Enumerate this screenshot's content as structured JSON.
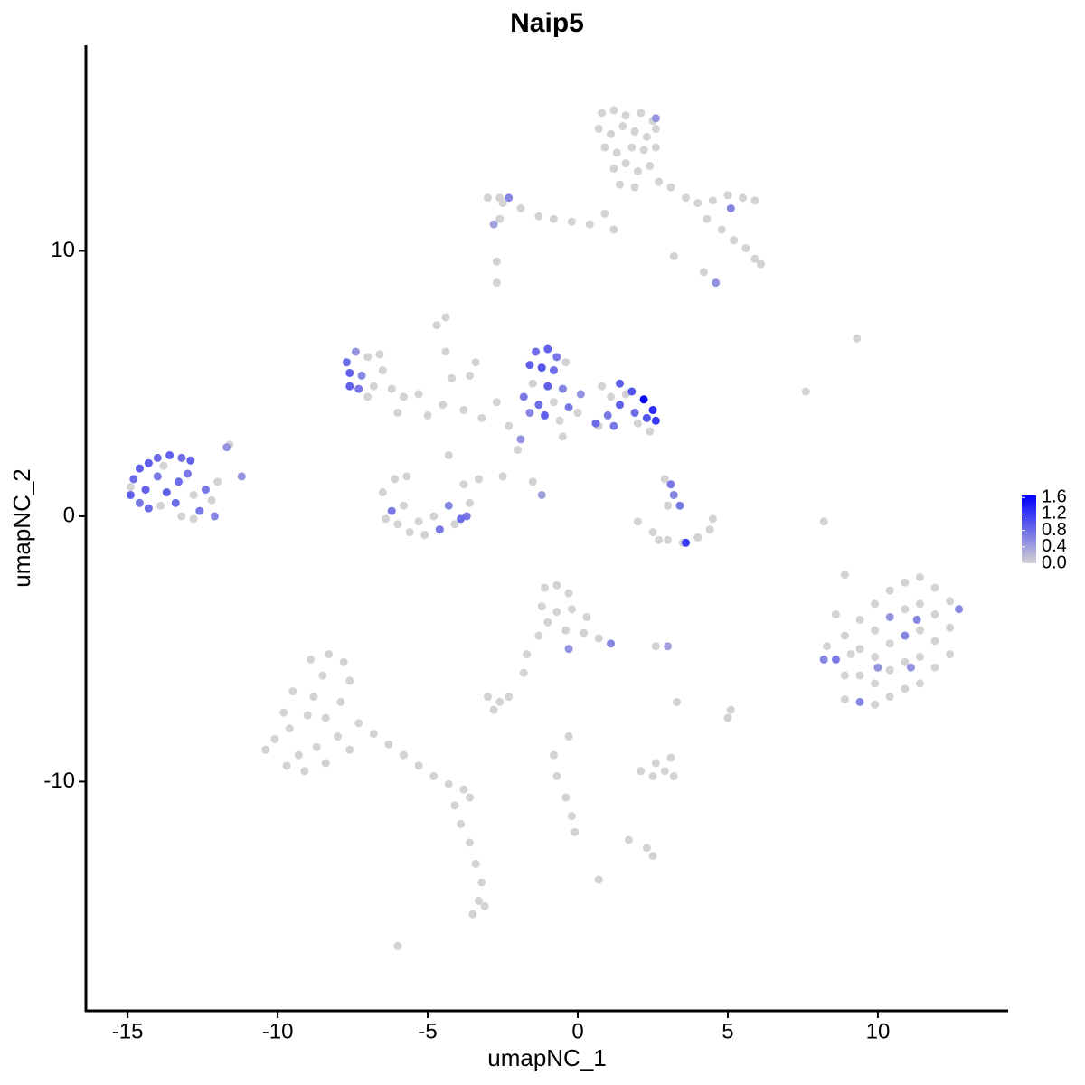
{
  "chart_data": {
    "type": "scatter",
    "title": "Naip5",
    "x_label": "umapNC_1",
    "y_label": "umapNC_2",
    "xlim": [
      -16.39,
      14.34
    ],
    "ylim": [
      -18.64,
      17.75
    ],
    "xticks": [
      -15,
      -10,
      -5,
      0,
      5,
      10
    ],
    "yticks": [
      -10,
      0,
      10
    ],
    "color_low": "#d3d3d3",
    "color_high": "#0000ff",
    "color_range": [
      0,
      1.65
    ],
    "color_ticks": [
      {
        "value": 0,
        "label": "0.0"
      },
      0.4,
      0.8,
      1.2,
      1.6
    ],
    "x": [
      0.8,
      1.2,
      1.6,
      2.1,
      2.5,
      0.7,
      1.1,
      1.5,
      1.9,
      2.3,
      2.6,
      0.9,
      1.3,
      1.8,
      2.2,
      2.6,
      1.2,
      1.6,
      2.0,
      2.4,
      1.4,
      1.9,
      2.7,
      3.1,
      3.6,
      4.0,
      4.5,
      5.0,
      5.5,
      5.9,
      4.3,
      4.8,
      5.2,
      5.6,
      5.9,
      6.1,
      4.2,
      4.6,
      5.1,
      2.6,
      0.9,
      0.4,
      -0.2,
      -0.8,
      -1.3,
      -1.9,
      -2.5,
      -3.0,
      -2.6,
      -2.3,
      -2.8,
      1.2,
      3.2,
      -2.7,
      -4.4,
      -4.7,
      -4.4,
      -4.2,
      -3.4,
      -3.6,
      -2.7,
      -3.8,
      -4.5,
      -5.3,
      -5.0,
      -3.2,
      -2.3,
      -2.0,
      -2.5,
      -4.3,
      -3.3,
      -1.5,
      -1.2,
      -1.9,
      -0.5,
      0.7,
      -7.7,
      -7.6,
      -7.4,
      -7.6,
      -7.0,
      -6.5,
      -7.2,
      -6.8,
      -6.2,
      -5.8,
      -7.0,
      -6.6,
      -7.3,
      -6.0,
      -1.4,
      -1.0,
      -0.7,
      -1.6,
      -1.2,
      -0.8,
      -0.4,
      -1.5,
      -1.0,
      -0.5,
      -1.8,
      -1.3,
      -0.8,
      -0.3,
      -1.1,
      -0.6,
      -1.6,
      0.0,
      0.1,
      0.6,
      1.0,
      1.4,
      1.4,
      1.8,
      2.2,
      2.5,
      2.6,
      2.3,
      1.9,
      1.6,
      1.1,
      0.8,
      2.0,
      1.2,
      2.4,
      -14.8,
      -14.6,
      -14.3,
      -14.0,
      -13.6,
      -13.2,
      -12.9,
      -14.9,
      -14.6,
      -14.3,
      -14.4,
      -14.0,
      -13.7,
      -13.3,
      -13.0,
      -13.9,
      -13.4,
      -12.8,
      -12.4,
      -12.2,
      -12.6,
      -12.1,
      -12.8,
      -13.2,
      -11.7,
      -11.6,
      -12.0,
      -11.2,
      -14.9,
      -13.8,
      -6.5,
      -6.2,
      -6.0,
      -5.6,
      -5.1,
      -4.6,
      -4.1,
      -3.7,
      -3.6,
      -3.8,
      -4.3,
      -5.3,
      -5.8,
      -4.8,
      -6.1,
      -5.7,
      -3.9,
      -6.4,
      2.0,
      2.5,
      3.0,
      3.5,
      4.0,
      4.4,
      4.5,
      3.6,
      3.1,
      3.2,
      3.4,
      3.0,
      2.9,
      2.7,
      8.3,
      8.2,
      8.6,
      8.9,
      8.9,
      8.9,
      9.4,
      9.4,
      9.4,
      9.4,
      9.9,
      9.9,
      9.9,
      9.9,
      9.9,
      10.4,
      10.4,
      10.4,
      10.4,
      10.4,
      10.9,
      10.9,
      10.9,
      10.9,
      10.9,
      11.4,
      11.4,
      11.4,
      11.4,
      11.4,
      11.9,
      11.9,
      11.9,
      11.9,
      12.4,
      12.4,
      12.4,
      12.7,
      11.3,
      11.1,
      10.0,
      9.1,
      8.6,
      8.9,
      8.2,
      7.6,
      9.3,
      -1.1,
      -0.7,
      -0.3,
      -1.2,
      -0.7,
      -0.2,
      0.3,
      -1.0,
      -0.4,
      0.2,
      0.7,
      1.1,
      -1.3,
      -1.7,
      -1.8,
      -0.3,
      3.0,
      2.6,
      -10.4,
      -10.1,
      -9.6,
      -9.0,
      -8.8,
      -8.5,
      -8.9,
      -8.3,
      -7.8,
      -7.6,
      -7.9,
      -8.4,
      -8.0,
      -8.7,
      -9.3,
      -9.7,
      -9.1,
      -8.4,
      -7.6,
      -9.5,
      -9.8,
      -7.3,
      -6.8,
      -6.3,
      -5.8,
      -5.3,
      -4.8,
      -4.3,
      -3.8,
      -3.6,
      -4.1,
      -3.9,
      -3.6,
      -3.4,
      -3.2,
      -3.3,
      -3.5,
      -3.1,
      -6.0,
      -3.0,
      -2.6,
      -2.3,
      -2.8,
      2.1,
      2.5,
      2.9,
      3.2,
      2.6,
      3.1,
      2.3,
      2.5,
      1.7,
      -0.8,
      -0.7,
      -0.4,
      -0.2,
      -0.1,
      0.7,
      -0.3,
      3.3,
      5.1,
      5.0,
      -2.6,
      -2.7
    ],
    "values": [
      15.2,
      15.3,
      15.1,
      15.2,
      14.9,
      14.6,
      14.4,
      14.7,
      14.5,
      14.3,
      14.6,
      13.9,
      13.7,
      13.9,
      13.8,
      13.9,
      13.1,
      13.3,
      13.0,
      13.2,
      12.5,
      12.4,
      12.6,
      12.4,
      12.0,
      11.8,
      11.9,
      12.1,
      12.0,
      11.9,
      11.2,
      10.8,
      10.4,
      10.1,
      9.7,
      9.5,
      9.2,
      8.8,
      11.6,
      15.0,
      11.4,
      11.0,
      11.1,
      11.2,
      11.3,
      11.6,
      11.8,
      12.0,
      11.2,
      12.0,
      11.0,
      10.8,
      9.8,
      8.8,
      7.5,
      7.2,
      6.2,
      5.2,
      5.8,
      5.3,
      4.3,
      4.0,
      4.2,
      4.6,
      3.8,
      3.7,
      3.4,
      2.5,
      1.5,
      2.3,
      1.4,
      1.3,
      0.8,
      2.9,
      3.0,
      3.4,
      5.8,
      5.4,
      6.2,
      4.9,
      6.0,
      5.5,
      5.3,
      4.9,
      4.8,
      4.5,
      4.5,
      6.1,
      4.8,
      3.9,
      6.2,
      6.3,
      6.0,
      5.7,
      5.6,
      5.5,
      5.8,
      5.0,
      4.9,
      4.8,
      4.5,
      4.2,
      4.3,
      4.1,
      3.8,
      3.6,
      3.9,
      3.9,
      4.6,
      3.5,
      3.8,
      4.2,
      5.0,
      4.7,
      4.4,
      4.0,
      3.6,
      3.7,
      3.9,
      4.6,
      4.5,
      4.9,
      3.5,
      3.4,
      3.2,
      1.4,
      1.8,
      2.0,
      2.2,
      2.3,
      2.2,
      2.1,
      0.8,
      0.5,
      0.3,
      1.0,
      1.5,
      0.9,
      1.3,
      1.6,
      0.4,
      0.5,
      0.8,
      1.0,
      0.6,
      0.2,
      0.0,
      -0.1,
      0.0,
      2.6,
      2.7,
      1.3,
      1.5,
      1.1,
      1.9,
      0.9,
      0.2,
      -0.3,
      -0.6,
      -0.7,
      -0.5,
      -0.3,
      0.0,
      0.5,
      1.2,
      0.4,
      -0.2,
      0.4,
      0.0,
      1.4,
      1.5,
      -0.1,
      -0.1,
      -0.2,
      -0.6,
      -0.9,
      -1.0,
      -0.8,
      -0.5,
      -0.1,
      -1.0,
      1.2,
      0.8,
      0.4,
      0.4,
      1.4,
      -0.9,
      -4.9,
      -5.4,
      -5.4,
      -4.5,
      -6.0,
      -6.9,
      -3.9,
      -5.0,
      -6.0,
      -7.0,
      -3.3,
      -4.3,
      -5.3,
      -6.3,
      -7.1,
      -2.8,
      -3.8,
      -4.8,
      -5.8,
      -6.8,
      -2.5,
      -3.5,
      -4.5,
      -5.5,
      -6.5,
      -2.3,
      -3.3,
      -4.3,
      -5.3,
      -6.3,
      -2.7,
      -3.7,
      -4.7,
      -5.7,
      -3.2,
      -4.2,
      -5.2,
      -3.5,
      -3.9,
      -5.7,
      -5.7,
      -5.2,
      -3.7,
      -2.2,
      -0.2,
      4.7,
      6.7,
      -2.7,
      -2.6,
      -2.9,
      -3.4,
      -3.6,
      -3.5,
      -3.8,
      -4.0,
      -4.3,
      -4.4,
      -4.6,
      -4.8,
      -4.5,
      -5.2,
      -5.9,
      -5.0,
      -4.9,
      -4.9,
      -8.8,
      -8.4,
      -8.0,
      -7.5,
      -6.8,
      -6.0,
      -5.4,
      -5.2,
      -5.5,
      -6.2,
      -7.0,
      -7.6,
      -8.3,
      -8.7,
      -9.0,
      -9.4,
      -9.6,
      -9.3,
      -8.8,
      -6.6,
      -7.4,
      -7.8,
      -8.2,
      -8.6,
      -9.0,
      -9.4,
      -9.8,
      -10.1,
      -10.3,
      -10.6,
      -10.9,
      -11.6,
      -12.3,
      -13.1,
      -13.8,
      -14.5,
      -15.0,
      -14.7,
      -16.2,
      -6.8,
      -7.0,
      -6.8,
      -7.3,
      -9.6,
      -9.8,
      -9.6,
      -9.8,
      -9.3,
      -9.1,
      -12.5,
      -12.8,
      -12.2,
      -9.0,
      -9.8,
      -10.6,
      -11.3,
      -11.9,
      -13.7,
      -8.3,
      -7.0,
      -7.3,
      -7.6,
      12.0,
      9.6
    ],
    "expression": [
      0,
      0,
      0,
      0,
      0,
      0,
      0,
      0,
      0,
      0,
      0,
      0,
      0,
      0,
      0,
      0,
      0,
      0,
      0,
      0,
      0,
      0,
      0,
      0,
      0,
      0,
      0,
      0,
      0,
      0,
      0,
      0,
      0,
      0,
      0,
      0,
      0,
      0.5,
      0.6,
      0.5,
      0,
      0,
      0,
      0,
      0,
      0,
      0,
      0,
      0,
      0.6,
      0.4,
      0,
      0,
      0,
      0,
      0,
      0,
      0,
      0,
      0,
      0,
      0,
      0,
      0,
      0,
      0,
      0,
      0,
      0,
      0,
      0,
      0,
      0.4,
      0.5,
      0,
      0,
      0.8,
      0.9,
      0.5,
      0.9,
      0,
      0,
      0.6,
      0,
      0,
      0,
      0,
      0,
      0.7,
      0,
      0.8,
      0.9,
      0.7,
      0.9,
      1.0,
      0.8,
      0,
      0,
      0.9,
      0.6,
      0.7,
      0.8,
      0,
      0.7,
      0.9,
      0,
      0.6,
      0,
      0.5,
      0.8,
      0.7,
      0.9,
      0.9,
      1.0,
      1.6,
      1.3,
      1.2,
      1.0,
      0.8,
      0,
      0,
      0,
      0,
      0.7,
      0,
      0.8,
      0.9,
      0.9,
      0.8,
      0.9,
      0.8,
      0.9,
      0.9,
      0.7,
      0.8,
      0.9,
      0.7,
      0.9,
      0.8,
      0.7,
      0,
      0.8,
      0,
      0.7,
      0,
      0.7,
      0.6,
      0,
      0,
      0.5,
      0,
      0,
      0.5,
      0,
      0,
      0,
      0.7,
      0,
      0,
      0,
      0.7,
      0,
      0.7,
      0,
      0,
      0.6,
      0,
      0,
      0,
      0,
      0,
      0.8,
      0,
      0,
      0,
      0,
      0,
      0,
      0,
      0,
      1.2,
      0.7,
      0.6,
      0.7,
      0,
      0,
      0,
      0,
      0.6,
      0.7,
      0,
      0,
      0,
      0,
      0,
      0,
      0.6,
      0,
      0,
      0,
      0,
      0,
      0,
      0.5,
      0,
      0,
      0,
      0,
      0,
      0.6,
      0,
      0,
      0,
      0,
      0,
      0,
      0,
      0,
      0,
      0,
      0,
      0,
      0,
      0,
      0.6,
      0.6,
      0.5,
      0.5,
      0,
      0,
      0,
      0,
      0,
      0,
      0,
      0,
      0,
      0,
      0,
      0,
      0,
      0,
      0,
      0,
      0,
      0.6,
      0,
      0,
      0,
      0.5,
      0.4,
      0,
      0,
      0,
      0,
      0,
      0,
      0,
      0,
      0,
      0,
      0,
      0,
      0,
      0,
      0,
      0,
      0,
      0,
      0,
      0,
      0,
      0,
      0,
      0,
      0,
      0,
      0,
      0,
      0,
      0,
      0,
      0,
      0,
      0,
      0,
      0,
      0,
      0,
      0,
      0,
      0,
      0,
      0,
      0,
      0,
      0,
      0,
      0,
      0,
      0,
      0,
      0,
      0,
      0,
      0,
      0,
      0,
      0,
      0,
      0,
      0,
      0,
      0,
      0,
      0
    ]
  }
}
